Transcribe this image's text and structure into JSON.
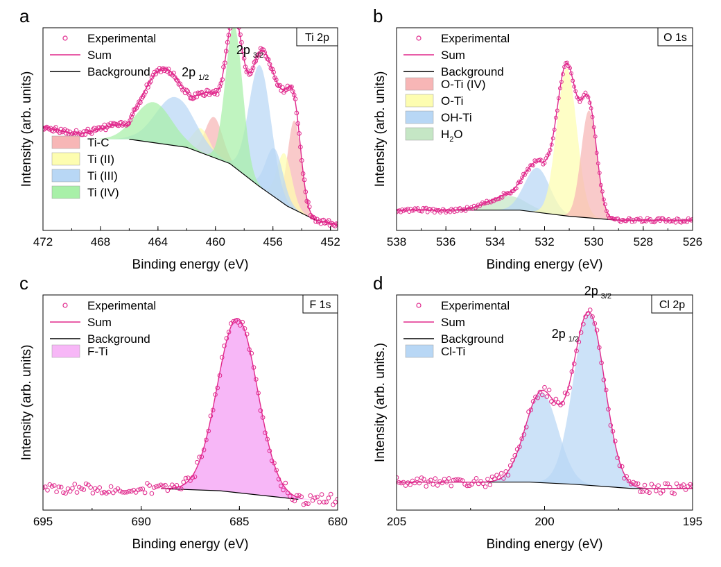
{
  "chart_data": [
    {
      "letter": "a",
      "type": "line",
      "badge": "Ti 2p",
      "xlabel": "Binding energy (eV)",
      "ylabel": "Intensity (arb. units)",
      "xlim": [
        472,
        451.5
      ],
      "xticks": [
        "472",
        "468",
        "464",
        "460",
        "456",
        "452"
      ],
      "xtick_values": [
        472,
        468,
        464,
        460,
        456,
        452
      ],
      "ylim": [
        0,
        1
      ],
      "grid": false,
      "legend_position": "top-left",
      "legend": [
        {
          "label": "Experimental",
          "kind": "marker",
          "color": "#e0288c"
        },
        {
          "label": "Sum",
          "kind": "line",
          "color": "#e0288c"
        },
        {
          "label": "Background",
          "kind": "line",
          "color": "#000000"
        }
      ],
      "fill_legend": [
        {
          "label": "Ti-C",
          "color": "#f7b6b6"
        },
        {
          "label": "Ti (II)",
          "color": "#fdfdb0"
        },
        {
          "label": "Ti (III)",
          "color": "#b8d7f5"
        },
        {
          "label": "Ti (IV)",
          "color": "#a8f0a8"
        }
      ],
      "annotations": [
        {
          "text": "2p",
          "sub": "1/2",
          "x": 461.4,
          "y": 0.76
        },
        {
          "text": "2p",
          "sub": "3/2",
          "x": 457.6,
          "y": 0.87
        }
      ],
      "background": [
        [
          466,
          0.45
        ],
        [
          462,
          0.41
        ],
        [
          459,
          0.33
        ],
        [
          457,
          0.22
        ],
        [
          455,
          0.12
        ],
        [
          453,
          0.05
        ],
        [
          451.5,
          0.03
        ]
      ],
      "flat": {
        "from": 472,
        "level": 0.5,
        "to": 466
      },
      "peaks": [
        {
          "name": "Ti-C",
          "center": 454.5,
          "height": 0.44,
          "fwhm": 1.1,
          "color": "#f7b6b6"
        },
        {
          "name": "Ti-C",
          "center": 460.1,
          "height": 0.2,
          "fwhm": 1.4,
          "color": "#f7b6b6"
        },
        {
          "name": "Ti (II)",
          "center": 455.2,
          "height": 0.25,
          "fwhm": 1.2,
          "color": "#fdfdb0"
        },
        {
          "name": "Ti (II)",
          "center": 461.0,
          "height": 0.12,
          "fwhm": 1.4,
          "color": "#fdfdb0"
        },
        {
          "name": "Ti (III)",
          "center": 455.9,
          "height": 0.24,
          "fwhm": 1.4,
          "color": "#b8d7f5"
        },
        {
          "name": "Ti (III)",
          "center": 456.9,
          "height": 0.6,
          "fwhm": 1.8,
          "color": "#b8d7f5"
        },
        {
          "name": "Ti (III)",
          "center": 462.8,
          "height": 0.24,
          "fwhm": 3.2,
          "color": "#b8d7f5"
        },
        {
          "name": "Ti (IV)",
          "center": 458.7,
          "height": 0.7,
          "fwhm": 1.4,
          "color": "#a8f0a8"
        },
        {
          "name": "Ti (IV)",
          "center": 464.3,
          "height": 0.2,
          "fwhm": 3.0,
          "color": "#a8f0a8"
        }
      ],
      "noise": 0.012
    },
    {
      "letter": "b",
      "type": "line",
      "badge": "O 1s",
      "xlabel": "Binding energy (eV)",
      "ylabel": "Intensity (arb. units)",
      "xlim": [
        538,
        526
      ],
      "xticks": [
        "538",
        "536",
        "534",
        "532",
        "530",
        "528",
        "526"
      ],
      "xtick_values": [
        538,
        536,
        534,
        532,
        530,
        528,
        526
      ],
      "ylim": [
        0,
        1
      ],
      "grid": false,
      "legend_position": "top-left",
      "legend": [
        {
          "label": "Experimental",
          "kind": "marker",
          "color": "#e0288c"
        },
        {
          "label": "Sum",
          "kind": "line",
          "color": "#e0288c"
        },
        {
          "label": "Background",
          "kind": "line",
          "color": "#000000"
        }
      ],
      "fill_legend": [
        {
          "label": "O-Ti (IV)",
          "color": "#f7b6b6"
        },
        {
          "label": "O-Ti",
          "color": "#fdfdb0"
        },
        {
          "label": "OH-Ti",
          "color": "#b8d7f5"
        },
        {
          "label": "H",
          "sub": "2",
          "after": "O",
          "color": "#c5e6c5"
        }
      ],
      "annotations": [],
      "background": [
        [
          538,
          0.1
        ],
        [
          533,
          0.1
        ],
        [
          531,
          0.07
        ],
        [
          529,
          0.05
        ],
        [
          526,
          0.05
        ]
      ],
      "flat": null,
      "peaks": [
        {
          "name": "H2O",
          "center": 533.5,
          "height": 0.07,
          "fwhm": 1.8,
          "color": "#c5e6c5"
        },
        {
          "name": "OH-Ti",
          "center": 532.3,
          "height": 0.22,
          "fwhm": 1.2,
          "color": "#b8d7f5"
        },
        {
          "name": "O-Ti",
          "center": 531.1,
          "height": 0.73,
          "fwhm": 0.95,
          "color": "#fdfdb0"
        },
        {
          "name": "O-Ti (IV)",
          "center": 530.2,
          "height": 0.53,
          "fwhm": 0.75,
          "color": "#f7b6b6"
        }
      ],
      "noise": 0.01
    },
    {
      "letter": "c",
      "type": "line",
      "badge": "F 1s",
      "xlabel": "Binding energy (eV)",
      "ylabel": "Intensity (arb. units)",
      "xlim": [
        695,
        680
      ],
      "xticks": [
        "695",
        "690",
        "685",
        "680"
      ],
      "xtick_values": [
        695,
        690,
        685,
        680
      ],
      "ylim": [
        0,
        1
      ],
      "grid": false,
      "legend_position": "top-left",
      "legend": [
        {
          "label": "Experimental",
          "kind": "marker",
          "color": "#e0288c"
        },
        {
          "label": "Sum",
          "kind": "line",
          "color": "#e0288c"
        },
        {
          "label": "Background",
          "kind": "line",
          "color": "#000000"
        }
      ],
      "fill_legend": [
        {
          "label": "F-Ti",
          "color": "#f7b7f7"
        }
      ],
      "annotations": [],
      "background": [
        [
          689,
          0.1
        ],
        [
          686,
          0.09
        ],
        [
          683,
          0.06
        ],
        [
          682,
          0.05
        ]
      ],
      "flat": null,
      "span": [
        689,
        682
      ],
      "peaks": [
        {
          "name": "F-Ti",
          "center": 685.1,
          "height": 0.81,
          "fwhm": 2.4,
          "color": "#f7b7f7"
        }
      ],
      "noise": 0.02
    },
    {
      "letter": "d",
      "type": "line",
      "badge": "Cl 2p",
      "xlabel": "Binding energy (eV)",
      "ylabel": "Intensity (arb. units.)",
      "xlim": [
        205,
        195
      ],
      "xticks": [
        "205",
        "200",
        "195"
      ],
      "xtick_values": [
        205,
        200,
        195
      ],
      "ylim": [
        0,
        1
      ],
      "grid": false,
      "legend_position": "top-left",
      "legend": [
        {
          "label": "Experimental",
          "kind": "marker",
          "color": "#e0288c"
        },
        {
          "label": "Sum",
          "kind": "line",
          "color": "#e0288c"
        },
        {
          "label": "Background",
          "kind": "line",
          "color": "#000000"
        }
      ],
      "fill_legend": [
        {
          "label": "Cl-Ti",
          "color": "#b8d7f5"
        }
      ],
      "annotations": [
        {
          "text": "2p",
          "sub": "1/2",
          "x": 199.3,
          "y": 0.8
        },
        {
          "text": "2p",
          "sub": "3/2",
          "x": 198.2,
          "y": 1.0
        }
      ],
      "background": [
        [
          205,
          0.13
        ],
        [
          200.5,
          0.13
        ],
        [
          199,
          0.12
        ],
        [
          197,
          0.1
        ],
        [
          195,
          0.1
        ]
      ],
      "flat": null,
      "peaks": [
        {
          "name": "Cl-Ti",
          "center": 200.1,
          "height": 0.42,
          "fwhm": 1.3,
          "color": "#b8d7f5"
        },
        {
          "name": "Cl-Ti",
          "center": 198.5,
          "height": 0.8,
          "fwhm": 1.25,
          "color": "#b8d7f5"
        }
      ],
      "noise": 0.02
    }
  ]
}
